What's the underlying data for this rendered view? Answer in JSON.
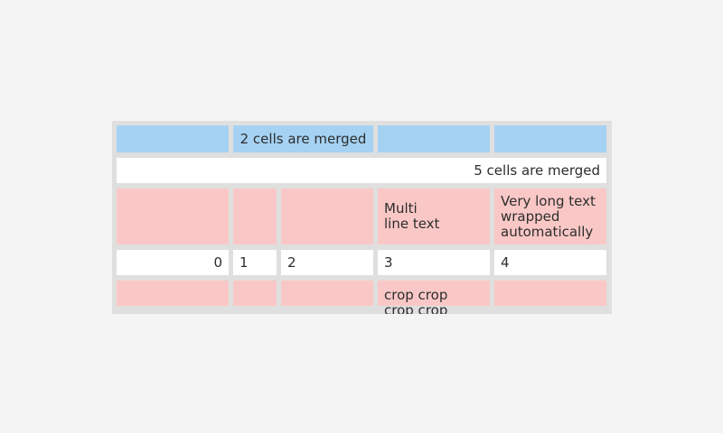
{
  "colors": {
    "page_background": "#f4f4f4",
    "table_background": "#dfdfdf",
    "header_cell": "#a5d2f3",
    "highlight_cell": "#f9c8c6",
    "normal_cell": "#ffffff",
    "text": "#2d2d2d"
  },
  "table": {
    "rows": [
      {
        "cells": [
          {
            "text": ""
          },
          {
            "text": "2 cells are merged",
            "span": 2
          },
          {
            "text": ""
          },
          {
            "text": ""
          }
        ]
      },
      {
        "cells": [
          {
            "text": "5 cells are merged",
            "span": 5
          }
        ]
      },
      {
        "cells": [
          {
            "text": ""
          },
          {
            "text": ""
          },
          {
            "text": ""
          },
          {
            "text": "Multi\nline text"
          },
          {
            "text": "Very long text\nwrapped\nautomatically"
          }
        ]
      },
      {
        "cells": [
          {
            "text": "0"
          },
          {
            "text": "1"
          },
          {
            "text": "2"
          },
          {
            "text": "3"
          },
          {
            "text": "4"
          }
        ]
      },
      {
        "cells": [
          {
            "text": ""
          },
          {
            "text": ""
          },
          {
            "text": ""
          },
          {
            "text": "crop crop\ncrop crop"
          },
          {
            "text": ""
          }
        ]
      }
    ]
  }
}
